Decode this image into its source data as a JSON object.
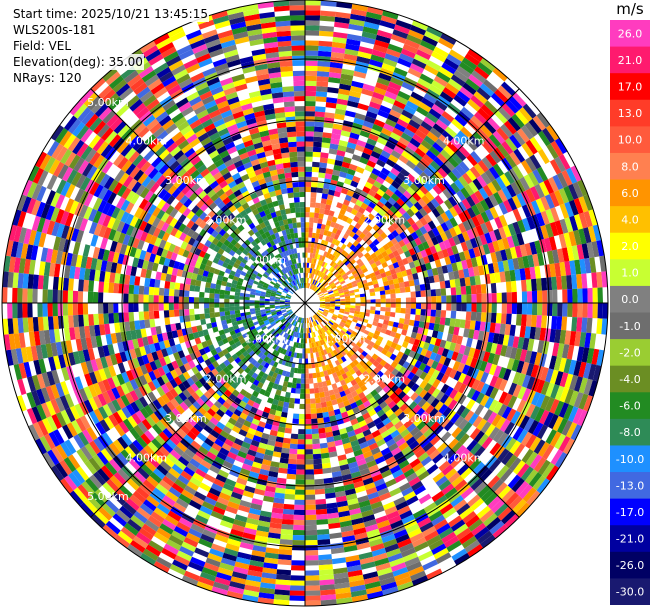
{
  "info": {
    "start_time": "Start time: 2025/10/21 13:45:15",
    "instrument": "WLS200s-181",
    "field": "Field: VEL",
    "elevation": "Elevation(deg): 35.00",
    "nrays": "NRays: 120"
  },
  "colorbar": {
    "unit": "m/s",
    "levels": [
      {
        "label": "26.0",
        "color": "#ff3cbf"
      },
      {
        "label": "21.0",
        "color": "#ff1a6e"
      },
      {
        "label": "17.0",
        "color": "#ff0000"
      },
      {
        "label": "13.0",
        "color": "#ff3c28"
      },
      {
        "label": "10.0",
        "color": "#ff5a3c"
      },
      {
        "label": "8.0",
        "color": "#ff8050"
      },
      {
        "label": "6.0",
        "color": "#ff9400"
      },
      {
        "label": "4.0",
        "color": "#ffc000"
      },
      {
        "label": "2.0",
        "color": "#ffff00"
      },
      {
        "label": "1.0",
        "color": "#c8ff32"
      },
      {
        "label": "0.0",
        "color": "#808080"
      },
      {
        "label": "-1.0",
        "color": "#6e6e6e"
      },
      {
        "label": "-2.0",
        "color": "#9acd32"
      },
      {
        "label": "-4.0",
        "color": "#6b8e23"
      },
      {
        "label": "-6.0",
        "color": "#228b22"
      },
      {
        "label": "-8.0",
        "color": "#2e8b57"
      },
      {
        "label": "-10.0",
        "color": "#1e90ff"
      },
      {
        "label": "-13.0",
        "color": "#4169e1"
      },
      {
        "label": "-17.0",
        "color": "#0000ff"
      },
      {
        "label": "-21.0",
        "color": "#0000a0"
      },
      {
        "label": "-26.0",
        "color": "#000064"
      },
      {
        "label": "-30.0",
        "color": "#191970"
      }
    ]
  },
  "chart_data": {
    "type": "heatmap",
    "projection": "polar PPI",
    "range_rings": [
      "1.00km",
      "2.00km",
      "3.00km",
      "4.00km",
      "5.00km"
    ],
    "ring_labels": [
      {
        "text": "5.00km",
        "angle_deg": 315
      },
      {
        "text": "4.00km",
        "angle_deg": 315
      },
      {
        "text": "3.00km",
        "angle_deg": 315
      },
      {
        "text": "2.00km",
        "angle_deg": 315
      },
      {
        "text": "1.00km",
        "angle_deg": 315
      },
      {
        "text": "4.00km",
        "angle_deg": 45
      },
      {
        "text": "3.00km",
        "angle_deg": 45
      },
      {
        "text": "2.00km",
        "angle_deg": 45
      },
      {
        "text": "1.00km",
        "angle_deg": 135
      },
      {
        "text": "2.00km",
        "angle_deg": 135
      },
      {
        "text": "3.00km",
        "angle_deg": 135
      },
      {
        "text": "4.00km",
        "angle_deg": 135
      },
      {
        "text": "1.00km",
        "angle_deg": 225
      },
      {
        "text": "2.00km",
        "angle_deg": 225
      },
      {
        "text": "3.00km",
        "angle_deg": 225
      },
      {
        "text": "4.00km",
        "angle_deg": 225
      },
      {
        "text": "5.00km",
        "angle_deg": 225
      }
    ],
    "unit": "m/s",
    "nrays": 120,
    "elevation_deg": 35.0,
    "wind_pattern": "negative velocities (blue/green) to the west, positive (yellow/red) to the east within ~1.5 km; noisy multicolored returns beyond"
  }
}
